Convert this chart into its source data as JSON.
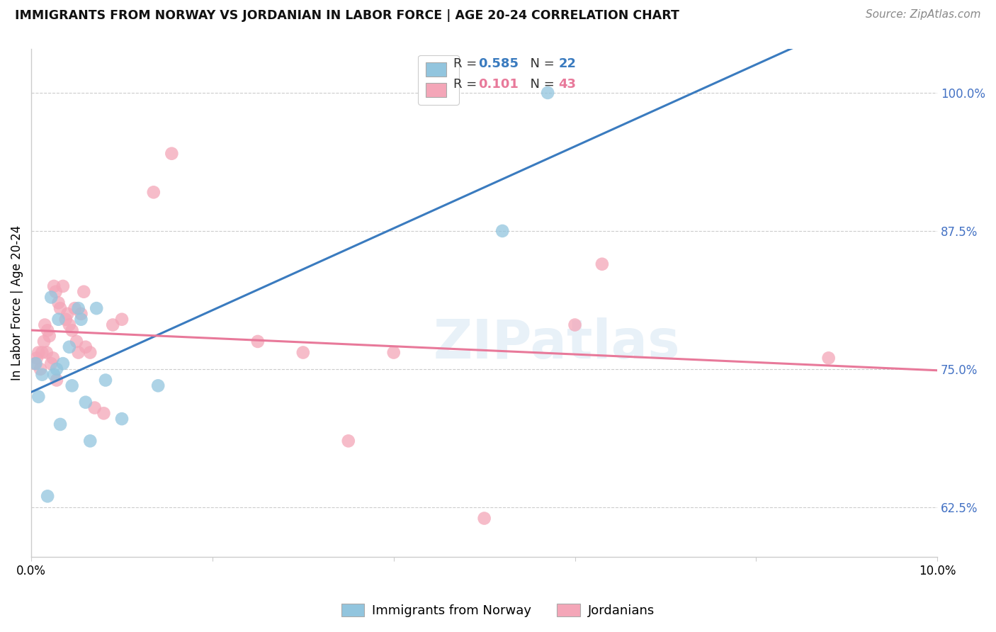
{
  "title": "IMMIGRANTS FROM NORWAY VS JORDANIAN IN LABOR FORCE | AGE 20-24 CORRELATION CHART",
  "source": "Source: ZipAtlas.com",
  "ylabel": "In Labor Force | Age 20-24",
  "y_ticks": [
    62.5,
    75.0,
    87.5,
    100.0
  ],
  "y_tick_labels": [
    "62.5%",
    "75.0%",
    "87.5%",
    "100.0%"
  ],
  "xlim": [
    0.0,
    10.0
  ],
  "ylim": [
    58.0,
    104.0
  ],
  "norway_R": 0.585,
  "norway_N": 22,
  "jordan_R": 0.101,
  "jordan_N": 43,
  "norway_color": "#92c5de",
  "jordan_color": "#f4a6b8",
  "norway_line_color": "#3a7bbf",
  "jordan_line_color": "#e8799a",
  "watermark": "ZIPatlas",
  "norway_x": [
    0.05,
    0.08,
    0.12,
    0.18,
    0.22,
    0.25,
    0.28,
    0.3,
    0.32,
    0.35,
    0.42,
    0.45,
    0.52,
    0.55,
    0.6,
    0.65,
    0.72,
    0.82,
    1.0,
    1.4,
    5.2,
    5.7
  ],
  "norway_y": [
    75.5,
    72.5,
    74.5,
    63.5,
    81.5,
    74.5,
    75.0,
    79.5,
    70.0,
    75.5,
    77.0,
    73.5,
    80.5,
    79.5,
    72.0,
    68.5,
    80.5,
    74.0,
    70.5,
    73.5,
    87.5,
    100.0
  ],
  "jordan_x": [
    0.04,
    0.06,
    0.08,
    0.1,
    0.12,
    0.14,
    0.15,
    0.17,
    0.18,
    0.2,
    0.22,
    0.24,
    0.25,
    0.27,
    0.28,
    0.3,
    0.32,
    0.35,
    0.38,
    0.4,
    0.42,
    0.45,
    0.48,
    0.5,
    0.52,
    0.55,
    0.58,
    0.6,
    0.65,
    0.7,
    0.8,
    0.9,
    1.0,
    1.35,
    1.55,
    2.5,
    3.0,
    3.5,
    4.0,
    5.0,
    6.0,
    6.3,
    8.8
  ],
  "jordan_y": [
    75.5,
    76.0,
    76.5,
    75.0,
    76.5,
    77.5,
    79.0,
    76.5,
    78.5,
    78.0,
    75.5,
    76.0,
    82.5,
    82.0,
    74.0,
    81.0,
    80.5,
    82.5,
    79.5,
    80.0,
    79.0,
    78.5,
    80.5,
    77.5,
    76.5,
    80.0,
    82.0,
    77.0,
    76.5,
    71.5,
    71.0,
    79.0,
    79.5,
    91.0,
    94.5,
    77.5,
    76.5,
    68.5,
    76.5,
    61.5,
    79.0,
    84.5,
    76.0
  ]
}
